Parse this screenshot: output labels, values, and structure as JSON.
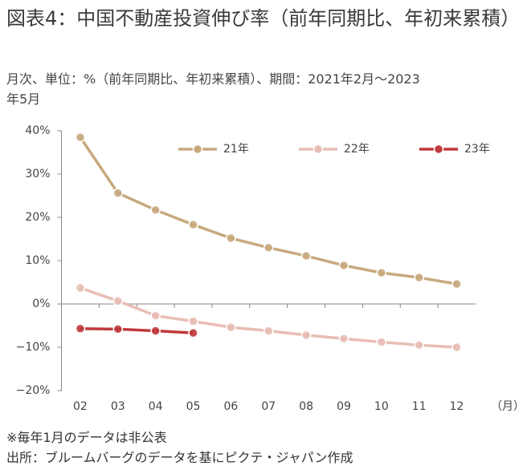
{
  "chart_data": {
    "type": "line",
    "title": "図表4：中国不動産投資伸び率（前年同期比、年初来累積）",
    "subtitle": "月次、単位：%（前年同期比、年初来累積）、期間：2021年2月～2023年5月",
    "x_label": "（月）",
    "notes": [
      "※毎年1月のデータは非公表",
      "出所：ブルームバーグのデータを基にピクテ・ジャパン作成"
    ],
    "categories": [
      "02",
      "03",
      "04",
      "05",
      "06",
      "07",
      "08",
      "09",
      "10",
      "11",
      "12"
    ],
    "series": [
      {
        "name": "21年",
        "color": "#c8a97e",
        "values": [
          38.5,
          25.6,
          21.7,
          18.3,
          15.2,
          13.0,
          11.1,
          8.9,
          7.2,
          6.1,
          4.6
        ]
      },
      {
        "name": "22年",
        "color": "#e8bdb5",
        "values": [
          3.7,
          0.7,
          -2.7,
          -4.0,
          -5.4,
          -6.2,
          -7.2,
          -8.0,
          -8.8,
          -9.5,
          -10.0
        ]
      },
      {
        "name": "23年",
        "color": "#c0393b",
        "values": [
          -5.7,
          -5.8,
          -6.2,
          -6.7,
          null,
          null,
          null,
          null,
          null,
          null,
          null
        ]
      }
    ],
    "ylim": [
      -20,
      40
    ],
    "yticks": [
      {
        "value": -20,
        "label": "−20%"
      },
      {
        "value": -10,
        "label": "−10%"
      },
      {
        "value": 0,
        "label": "0%"
      },
      {
        "value": 10,
        "label": "10%"
      },
      {
        "value": 20,
        "label": "20%"
      },
      {
        "value": 30,
        "label": "30%"
      },
      {
        "value": 40,
        "label": "40%"
      }
    ],
    "legend": "upper right"
  }
}
